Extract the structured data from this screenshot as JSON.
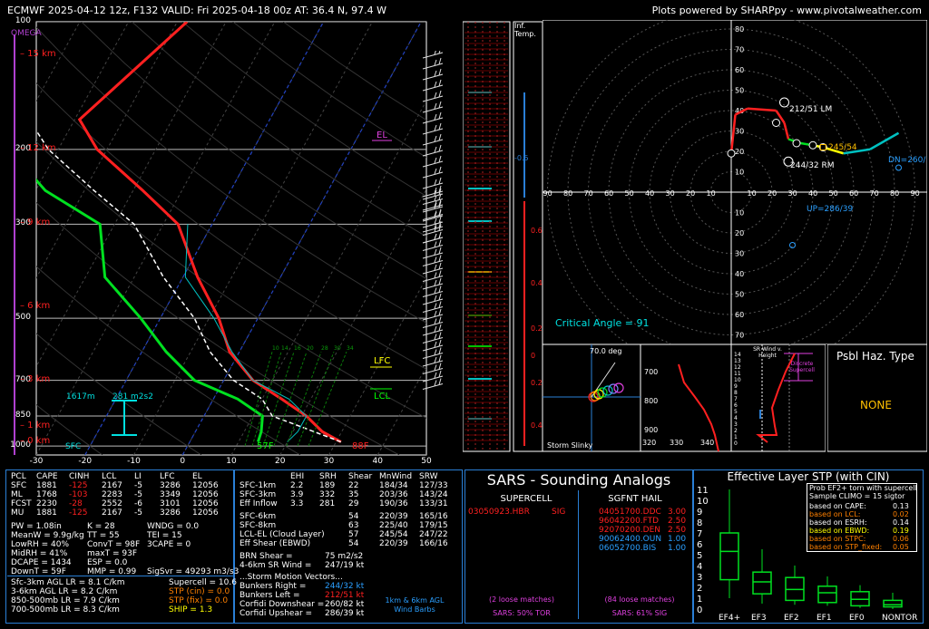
{
  "header": {
    "left": "ECMWF 2025-04-12 12z, F132  VALID: Fri 2025-04-18 00z  AT: 36.4 N, 97.4 W",
    "right": "Plots powered by SHARPpy - www.pivotalweather.com"
  },
  "skewt": {
    "pressure_ticks": [
      "100",
      "200",
      "300",
      "500",
      "700",
      "850",
      "1000"
    ],
    "temp_ticks": [
      "-30",
      "-20",
      "-10",
      "0",
      "10",
      "20",
      "30",
      "40",
      "50"
    ],
    "height_labels": [
      "15 km",
      "12 km",
      "9 km",
      "6 km",
      "3 km",
      "1 km",
      "0 km"
    ],
    "omega_label": "OMEGA",
    "el_label": "EL",
    "lfc_label": "LFC",
    "lcl_label": "LCL",
    "sfc_label": "SFC",
    "sfc_temp": "88F",
    "sfc_dew": "57F",
    "eff_inflow_bottom": "1617m",
    "eff_inflow_srh": "281 m2s2",
    "mix_ticks": [
      "10",
      "14",
      "16",
      "20",
      "28",
      "30",
      "34"
    ],
    "inf_temp_label": "Inf. Temp.",
    "omega_vals": [
      "-0.5",
      "0.6",
      "0.4",
      "0.2",
      "0",
      "0.2",
      "0.4"
    ]
  },
  "hodograph": {
    "rings": [
      "10",
      "20",
      "30",
      "40",
      "50",
      "60",
      "70",
      "80"
    ],
    "x_ticks": [
      "90",
      "80",
      "70",
      "60",
      "50",
      "40",
      "30",
      "20",
      "10",
      "10",
      "20",
      "30",
      "40",
      "50",
      "60",
      "70",
      "80",
      "90"
    ],
    "lm_label": "212/51 LM",
    "rm_label": "244/32 RM",
    "mean_label": "245/54",
    "dn_label": "DN=260/",
    "up_label": "UP=286/39",
    "critical_angle": "Critical Angle = 91",
    "storm_slinky_label": "Storm Slinky",
    "storm_slinky_deg": "70.0 deg",
    "thetae_p_ticks": [
      "700",
      "800",
      "900"
    ],
    "thetae_t_ticks": [
      "320",
      "330",
      "340"
    ],
    "srwind_title": "SR Wind v. Height",
    "srwind_note": "Discrete Supercell",
    "srwind_hticks": [
      "14",
      "13",
      "12",
      "11",
      "10",
      "9",
      "8",
      "7",
      "6",
      "5",
      "4",
      "3",
      "2",
      "1",
      "0"
    ],
    "srwind_xticks": [
      "0",
      "20",
      "40",
      "60",
      "80"
    ],
    "psbl_title": "Psbl Haz. Type",
    "psbl_value": "NONE"
  },
  "params": {
    "head": [
      "PCL",
      "CAPE",
      "CINH",
      "LCL",
      "LI",
      "LFC",
      "EL"
    ],
    "rows": [
      [
        "SFC",
        "1881",
        "-125",
        "2167",
        "-5",
        "3286",
        "12056"
      ],
      [
        "ML",
        "1768",
        "-103",
        "2283",
        "-5",
        "3349",
        "12056"
      ],
      [
        "FCST",
        "2230",
        "-28",
        "2552",
        "-6",
        "3101",
        "12056"
      ],
      [
        "MU",
        "1881",
        "-125",
        "2167",
        "-5",
        "3286",
        "12056"
      ]
    ],
    "col1": [
      "PW = 1.08in",
      "MeanW = 9.9g/kg",
      "LowRH = 40%",
      "MidRH = 41%",
      "DCAPE = 1434",
      "DownT = 59F"
    ],
    "col2": [
      "K = 28",
      "TT = 55",
      "ConvT = 98F",
      "maxT = 93F",
      "ESP = 0.0",
      "MMP = 0.99"
    ],
    "col3": [
      "WNDG = 0.0",
      "TEI = 15",
      "3CAPE = 0",
      "",
      "",
      "SigSvr = 49293 m3/s3"
    ],
    "lapse": [
      "Sfc-3km AGL LR = 8.1 C/km",
      "3-6km AGL LR = 8.2 C/km",
      "850-500mb LR = 7.9 C/km",
      "700-500mb LR = 8.3 C/km"
    ],
    "comp": [
      "Supercell = 10.6",
      "STP (cin) = 0.0",
      "STP (fix) = 0.0",
      "SHIP = 1.3"
    ],
    "kin_head": [
      "EHI",
      "SRH",
      "Shear",
      "MnWind",
      "SRW"
    ],
    "kin_rows": [
      [
        "SFC-1km",
        "2.2",
        "189",
        "22",
        "184/34",
        "127/33"
      ],
      [
        "SFC-3km",
        "3.9",
        "332",
        "35",
        "203/36",
        "143/24"
      ],
      [
        "Eff Inflow",
        "3.3",
        "281",
        "29",
        "190/36",
        "133/31"
      ],
      [
        "SFC-6km",
        "",
        "",
        "54",
        "220/39",
        "165/16"
      ],
      [
        "SFC-8km",
        "",
        "",
        "63",
        "225/40",
        "179/15"
      ],
      [
        "LCL-EL (Cloud Layer)",
        "",
        "",
        "57",
        "245/54",
        "247/22"
      ],
      [
        "Eff Shear (EBWD)",
        "",
        "",
        "54",
        "220/39",
        "166/16"
      ]
    ],
    "brn": [
      "BRN Shear =",
      "75 m2/s2"
    ],
    "srw46": [
      "4-6km SR Wind =",
      "247/19 kt"
    ],
    "motion_title": "...Storm Motion Vectors...",
    "motion": [
      [
        "Bunkers Right =",
        "244/32 kt"
      ],
      [
        "Bunkers Left =",
        "212/51 kt"
      ],
      [
        "Corfidi Downshear =",
        "260/82 kt"
      ],
      [
        "Corfidi Upshear =",
        "286/39 kt"
      ]
    ],
    "barb_label": "1km & 6km AGL Wind Barbs"
  },
  "sars": {
    "title": "SARS - Sounding Analogs",
    "sc_title": "SUPERCELL",
    "hail_title": "SGFNT HAIL",
    "sc_matches": [
      [
        "03050923.HBR",
        "SIG"
      ]
    ],
    "hail_matches": [
      [
        "04051700.DDC",
        "3.00"
      ],
      [
        "96042200.FTD",
        "2.50"
      ],
      [
        "92070200.DEN",
        "2.50"
      ],
      [
        "90062400.OUN",
        "1.00"
      ],
      [
        "06052700.BIS",
        "1.00"
      ]
    ],
    "sc_loose": "(2 loose matches)",
    "hail_loose": "(84 loose matches)",
    "sc_prob": "SARS: 50% TOR",
    "hail_prob": "SARS: 61% SIG"
  },
  "stp": {
    "title": "Effective Layer STP (with CIN)",
    "prob_title": "Prob EF2+ torn with supercell",
    "climo": "Sample CLIMO = 15 sigtor",
    "based": [
      [
        "based on CAPE:",
        "0.13"
      ],
      [
        "based on LCL:",
        "0.02"
      ],
      [
        "based on ESRH:",
        "0.14"
      ],
      [
        "based on EBWD:",
        "0.19"
      ],
      [
        "based on STPC:",
        "0.06"
      ],
      [
        "based on STP_fixed:",
        "0.05"
      ]
    ]
  },
  "chart_data": [
    {
      "type": "line",
      "title": "",
      "xlabel": "",
      "ylabel": "",
      "xlim": [
        -30,
        50
      ],
      "ylim": [
        1000,
        100
      ],
      "yscale": "log",
      "series": [
        {
          "name": "",
          "x": [
            31,
            26,
            21,
            14,
            6,
            -2,
            -8,
            -17,
            -27,
            -38,
            -52,
            -59,
            -48
          ],
          "y": [
            978,
            925,
            850,
            775,
            700,
            600,
            500,
            400,
            300,
            250,
            200,
            170,
            100
          ]
        },
        {
          "name": "",
          "x": [
            14,
            13.5,
            12,
            5,
            -6,
            -15,
            -24,
            -36,
            -43,
            -58,
            -70,
            -82,
            -88
          ],
          "y": [
            978,
            925,
            850,
            775,
            700,
            600,
            500,
            400,
            300,
            250,
            200,
            150,
            100
          ]
        },
        {
          "name": "",
          "x": [
            31,
            21,
            14,
            10,
            2,
            -6,
            -13,
            -24,
            -36,
            -48,
            -62,
            -75
          ],
          "y": [
            978,
            900,
            850,
            775,
            700,
            600,
            500,
            400,
            300,
            250,
            200,
            150
          ]
        }
      ]
    },
    {
      "type": "scatter",
      "title": "",
      "xlabel": "",
      "ylabel": "",
      "xlim": [
        -90,
        90
      ],
      "ylim": [
        -90,
        90
      ],
      "series": [
        {
          "name": "",
          "x": [
            0,
            2,
            8,
            22,
            26,
            28,
            34,
            40,
            45,
            55,
            68,
            82
          ],
          "y": [
            19,
            38,
            41,
            40,
            34,
            26,
            24,
            23,
            22,
            19,
            21,
            29
          ]
        }
      ]
    },
    {
      "type": "bar",
      "title": "",
      "xlabel": "",
      "ylabel": "",
      "categories": [
        "EF4+",
        "EF3",
        "EF2",
        "EF1",
        "EF0",
        "NONTOR"
      ],
      "ylim": [
        0,
        11
      ],
      "series": [
        {
          "name": "",
          "values": [
            5.3,
            2.5,
            1.8,
            1.5,
            0.9,
            0.4
          ]
        }
      ]
    }
  ]
}
